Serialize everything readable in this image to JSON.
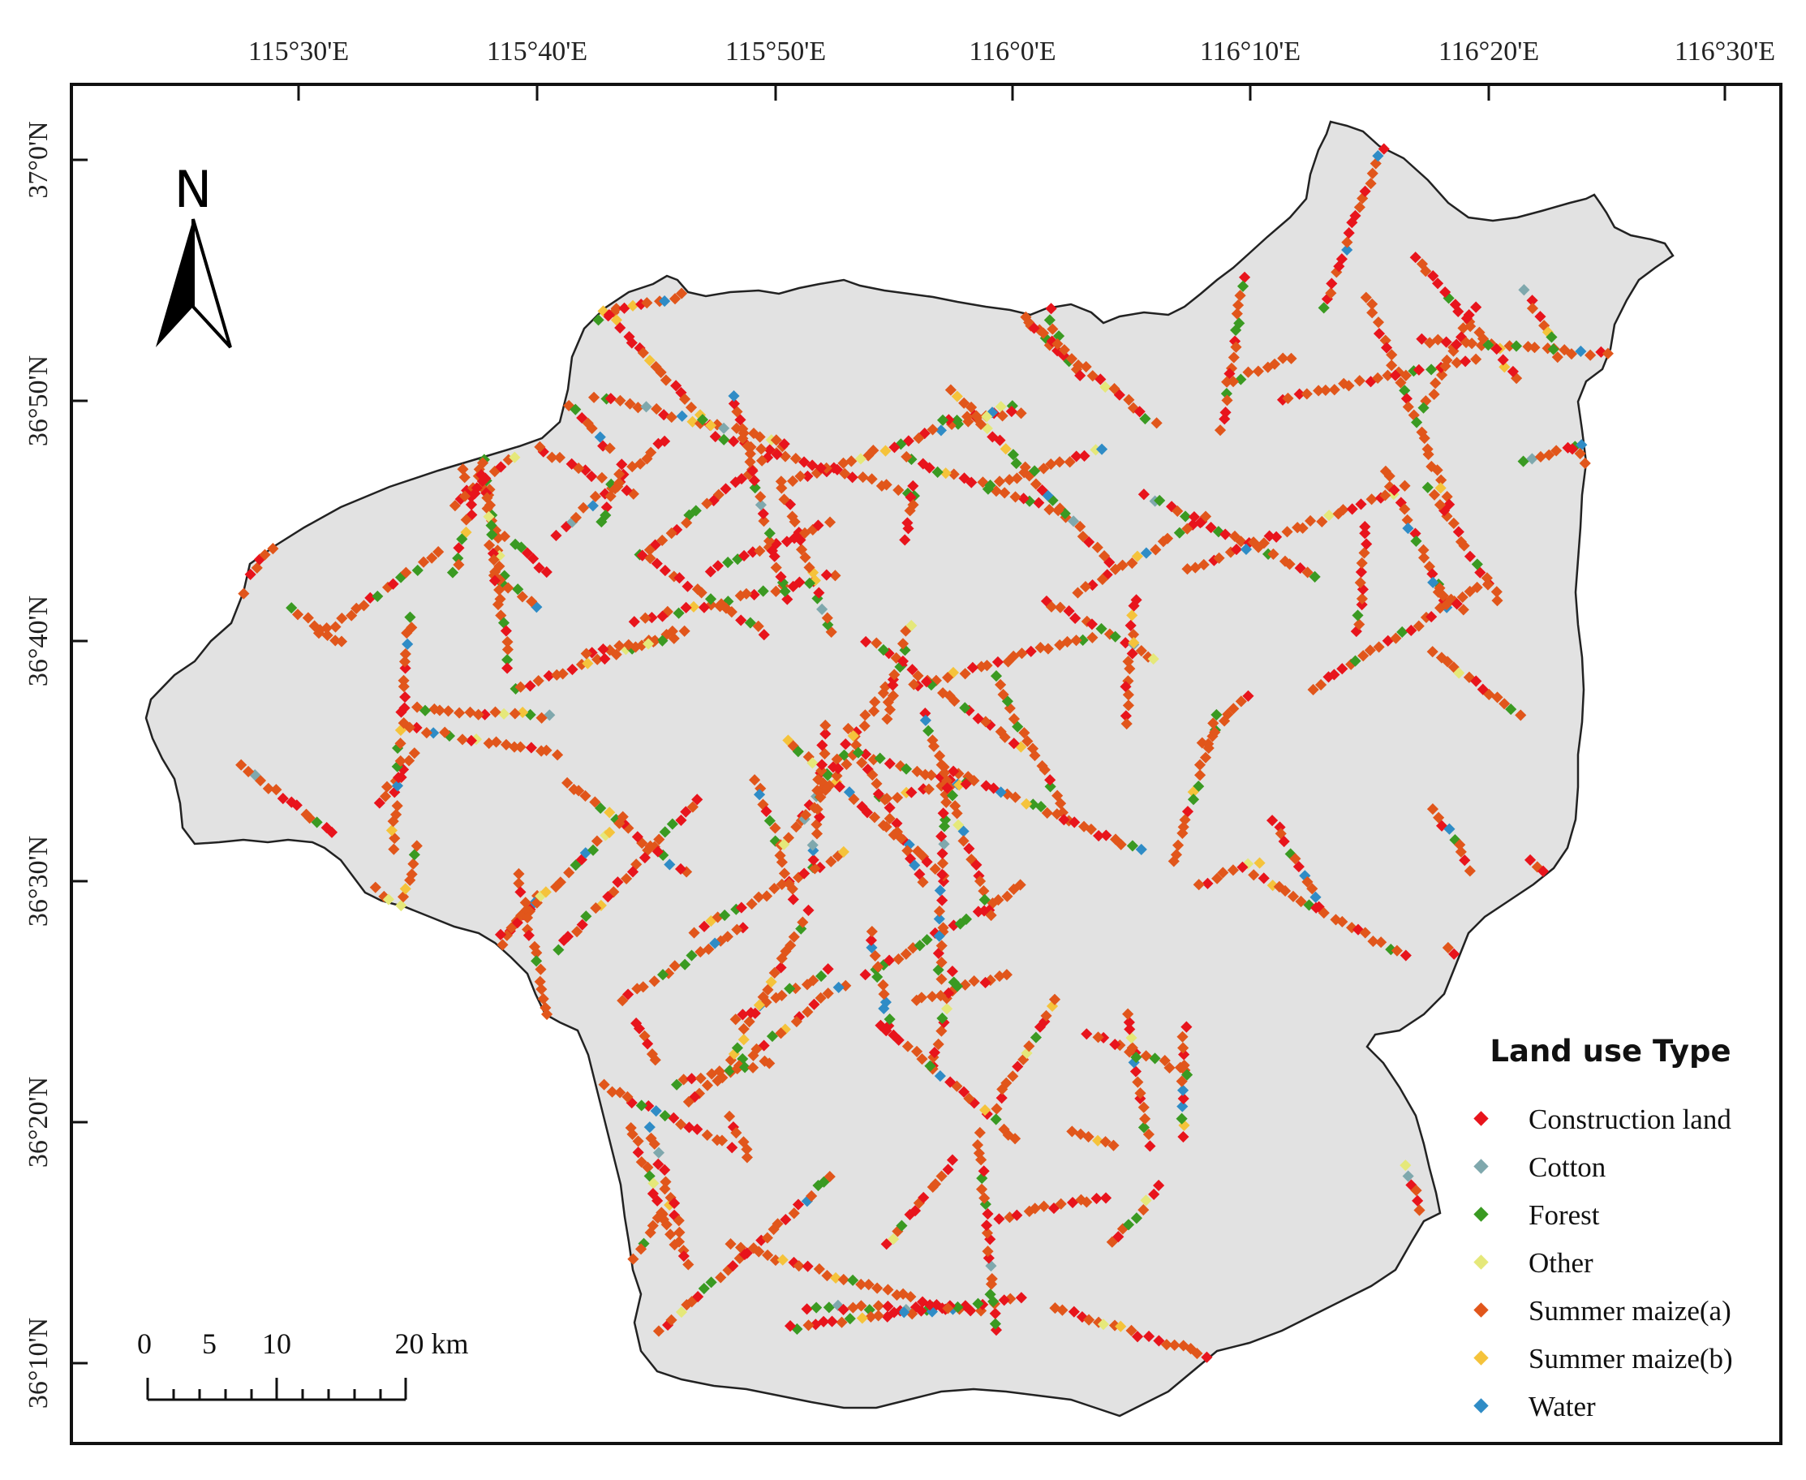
{
  "map": {
    "top_ticks": [
      "115°30'E",
      "115°40'E",
      "115°50'E",
      "116°0'E",
      "116°10'E",
      "116°20'E",
      "116°30'E"
    ],
    "left_ticks": [
      "37°0'N",
      "36°50'N",
      "36°40'N",
      "36°30'N",
      "36°20'N",
      "36°10'N"
    ],
    "region_fill": "#e2e2e2",
    "region_stroke": "#222222"
  },
  "north_arrow": {
    "label": "N"
  },
  "scale_bar": {
    "labels": [
      "0",
      "5",
      "10",
      "20 km"
    ]
  },
  "legend": {
    "title": "Land use Type",
    "items": [
      {
        "label": "Construction land",
        "color": "#e8141c"
      },
      {
        "label": "Cotton",
        "color": "#7fa8ad"
      },
      {
        "label": "Forest",
        "color": "#3a9a22"
      },
      {
        "label": "Other",
        "color": "#e5e87a"
      },
      {
        "label": "Summer maize(a)",
        "color": "#e1561b"
      },
      {
        "label": "Summer maize(b)",
        "color": "#f5c33b"
      },
      {
        "label": "Water",
        "color": "#2f8cc6"
      }
    ]
  }
}
